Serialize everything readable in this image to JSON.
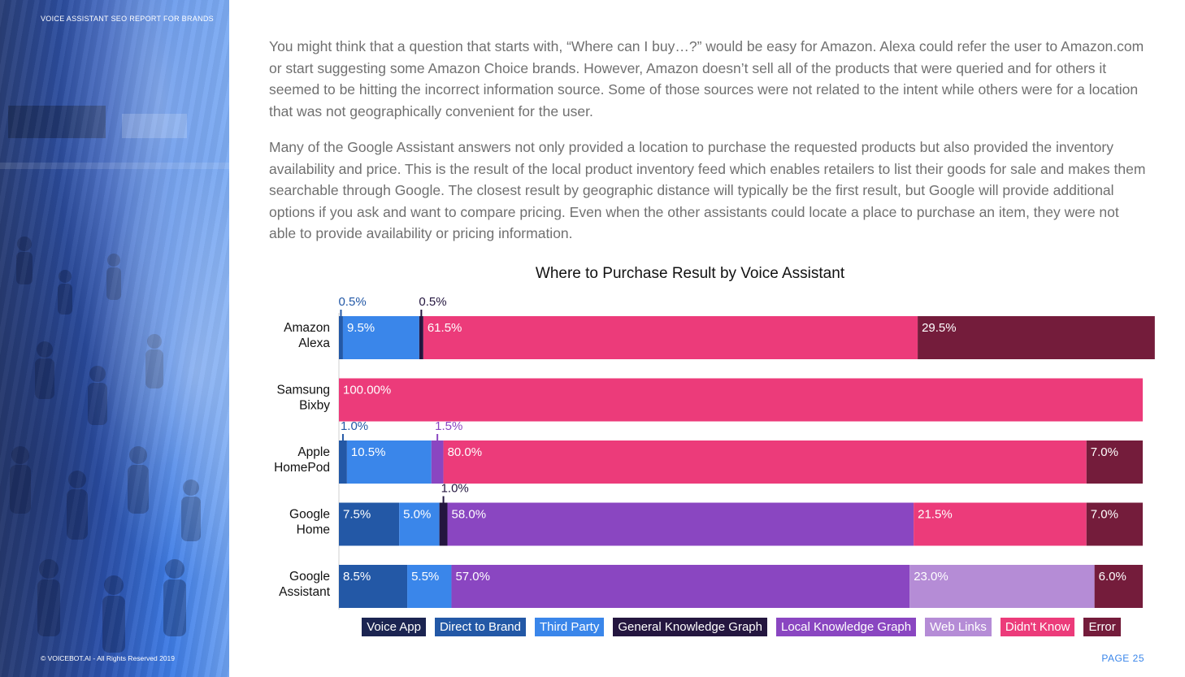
{
  "header": {
    "doc_title": "VOICE ASSISTANT SEO REPORT FOR BRANDS"
  },
  "footer": {
    "copyright": "© VOICEBOT.AI - All Rights Reserved 2019",
    "page": "PAGE 25"
  },
  "body": {
    "paragraph1": "You might think that a question that starts with, “Where can I buy…?” would be easy for Amazon. Alexa could refer the user to Amazon.com or start suggesting some Amazon Choice brands. However, Amazon doesn’t sell all of the products that were queried and for others it seemed to be hitting the incorrect information source. Some of those sources were not related to the intent while others were for a location that was not geographically convenient for the user.",
    "paragraph2": "Many of the Google Assistant answers not only provided a location to purchase the requested products but also provided the inventory availability and price. This is the result of the local product inventory feed which enables retailers to list their goods for sale and makes them searchable through Google. The closest result by geographic distance will typically be the first result, but Google will provide additional options if you ask and want to compare pricing. Even when the other assistants could locate a place to purchase an item, they were not able to provide availability or pricing information."
  },
  "chart_data": {
    "type": "bar",
    "orientation": "horizontal",
    "stacked": true,
    "title": "Where to Purchase Result by Voice Assistant",
    "xlim": [
      0,
      100
    ],
    "categories": [
      [
        "Amazon",
        "Alexa"
      ],
      [
        "Samsung",
        "Bixby"
      ],
      [
        "Apple",
        "HomePod"
      ],
      [
        "Google",
        "Home"
      ],
      [
        "Google",
        "Assistant"
      ]
    ],
    "series": [
      {
        "name": "Voice App",
        "color": "#1b2451",
        "values": [
          0,
          0,
          0,
          0,
          0
        ]
      },
      {
        "name": "Direct to Brand",
        "color": "#2358a6",
        "values": [
          0.5,
          0,
          1.0,
          7.5,
          8.5
        ]
      },
      {
        "name": "Third Party",
        "color": "#3a86ea",
        "values": [
          9.5,
          0,
          10.5,
          5.0,
          5.5
        ]
      },
      {
        "name": "General Knowledge Graph",
        "color": "#24163f",
        "values": [
          0.5,
          0,
          0,
          1.0,
          0
        ]
      },
      {
        "name": "Local Knowledge Graph",
        "color": "#8a46c1",
        "values": [
          0,
          0,
          1.5,
          58.0,
          57.0
        ]
      },
      {
        "name": "Web Links",
        "color": "#b58cd6",
        "values": [
          0,
          0,
          0,
          0,
          23.0
        ]
      },
      {
        "name": "Didn't Know",
        "color": "#ec3b7a",
        "values": [
          61.5,
          100.0,
          80.0,
          21.5,
          0
        ]
      },
      {
        "name": "Error",
        "color": "#741c3b",
        "values": [
          29.5,
          0,
          7.0,
          7.0,
          6.0
        ]
      }
    ],
    "labels": [
      [
        null,
        "0.5%",
        "9.5%",
        "0.5%",
        null,
        null,
        "61.5%",
        "29.5%"
      ],
      [
        null,
        null,
        null,
        null,
        null,
        null,
        "100.00%",
        null
      ],
      [
        null,
        "1.0%",
        "10.5%",
        null,
        "1.5%",
        null,
        "80.0%",
        "7.0%"
      ],
      [
        null,
        "7.5%",
        "5.0%",
        "1.0%",
        "58.0%",
        null,
        "21.5%",
        "7.0%"
      ],
      [
        null,
        "8.5%",
        "5.5%",
        null,
        "57.0%",
        "23.0%",
        null,
        "6.0%"
      ]
    ]
  }
}
